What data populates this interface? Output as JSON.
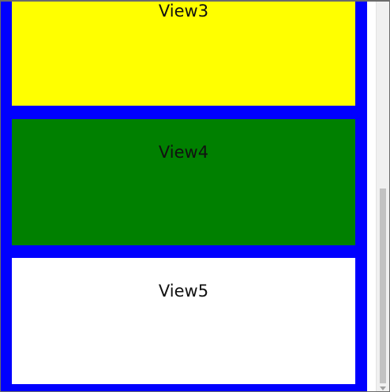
{
  "colors": {
    "container_background": "#0000ff",
    "view3_background": "#ffff00",
    "view4_background": "#008000",
    "view5_background": "#ffffff"
  },
  "views": [
    {
      "label": "View3",
      "color": "#ffff00"
    },
    {
      "label": "View4",
      "color": "#008000"
    },
    {
      "label": "View5",
      "color": "#ffffff"
    }
  ],
  "scrollbar": {
    "scroll_position_fraction": 0.95
  }
}
